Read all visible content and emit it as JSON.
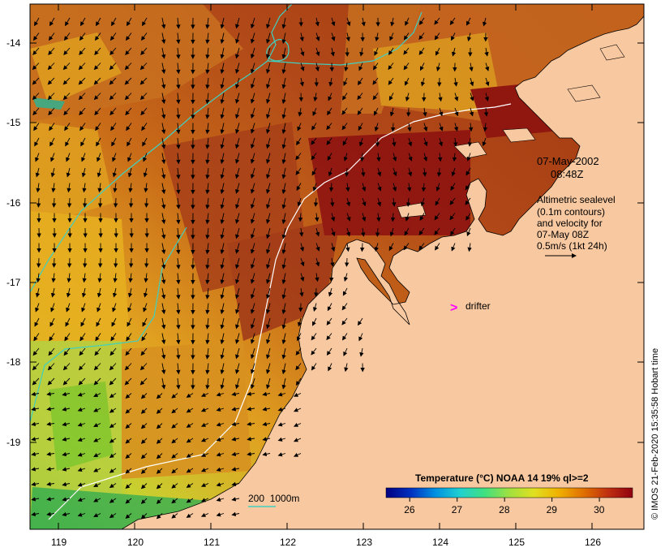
{
  "colors": {
    "land": "#f8c8a0",
    "sea_warm": "#b04018",
    "sea_hot": "#8c1010",
    "sea_mid": "#d88020",
    "sea_cool": "#e8b020",
    "sea_green": "#a8d040",
    "sea_cyan": "#40c8a0",
    "isobath_200": "#40d0c0",
    "isobath_1000": "#ffffff",
    "drifter": "#ff00ff"
  },
  "axes": {
    "x_ticks": [
      "119",
      "120",
      "121",
      "122",
      "123",
      "124",
      "125",
      "126"
    ],
    "y_ticks": [
      "-14",
      "-15",
      "-16",
      "-17",
      "-18",
      "-19"
    ]
  },
  "annotations": {
    "date": "07-May-2002",
    "time": "08:48Z",
    "velocity_note": [
      "Altimetric sealevel",
      "(0.1m contours)",
      "and velocity for",
      "07-May 08Z",
      "0.5m/s (1kt 24h)"
    ],
    "drifter_label": "drifter",
    "drifter_symbol": ">",
    "isobath_legend": "200  1000m",
    "credit": "© IMOS 21-Feb-2020 15:35:58 Hobart time"
  },
  "colorbar": {
    "title": "Temperature (°C) NOAA 14 19% ql>=2",
    "ticks": [
      "26",
      "27",
      "28",
      "29",
      "30"
    ],
    "range": [
      25.5,
      30.7
    ],
    "colors": [
      "#000080",
      "#0030c0",
      "#0090e0",
      "#20d0d0",
      "#40e080",
      "#a0e040",
      "#e0e020",
      "#f0b000",
      "#e07000",
      "#c03010",
      "#900010"
    ]
  }
}
